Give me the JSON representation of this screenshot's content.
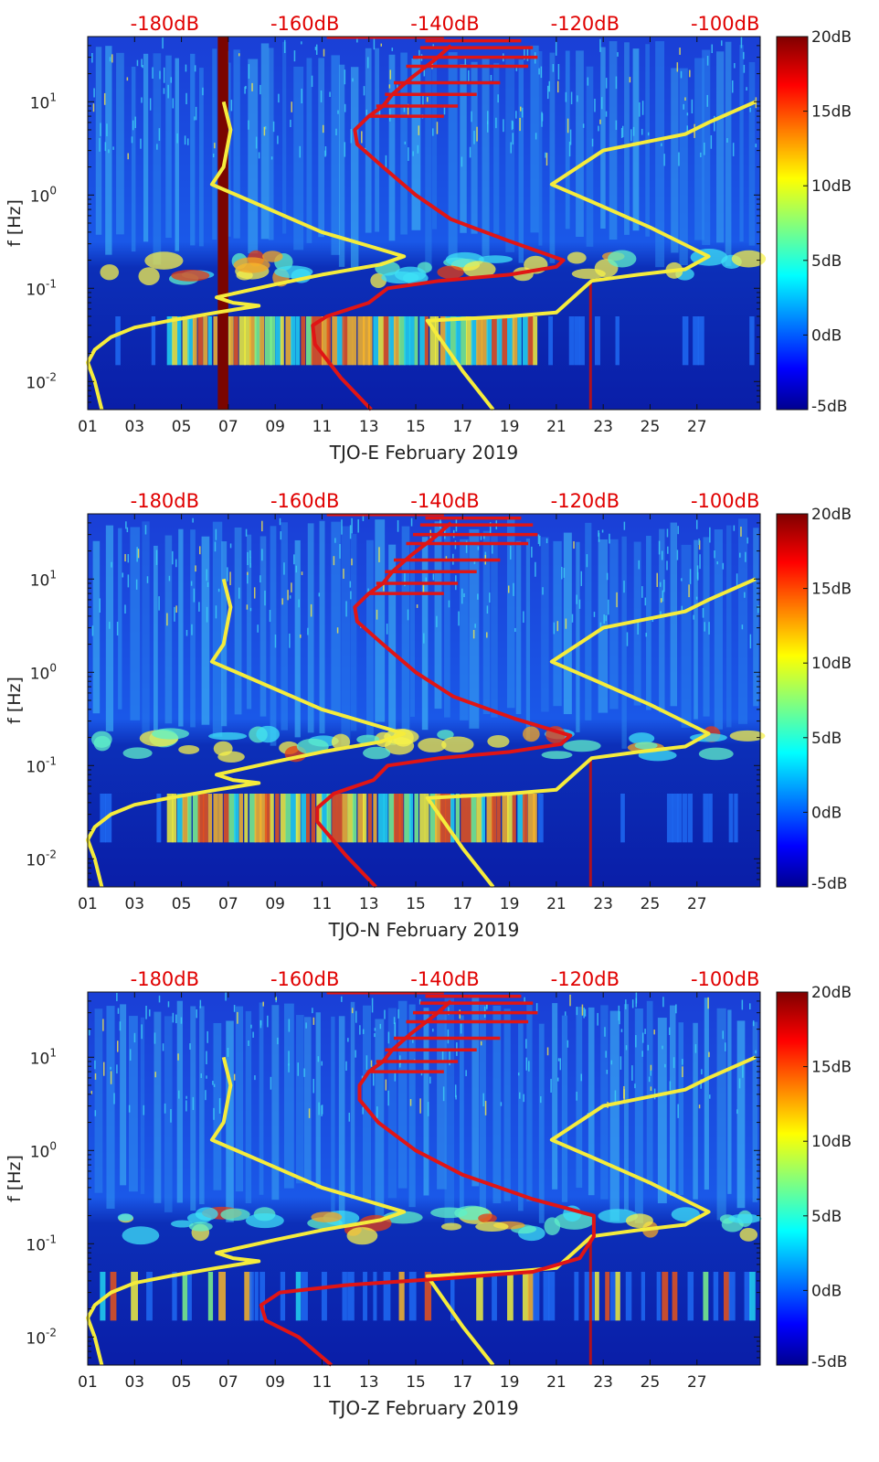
{
  "chart_data": [
    {
      "type": "heatmap",
      "station": "TJO-E",
      "xlabel": "TJO-E February 2019",
      "ylabel": "f [Hz]",
      "x_ticks": [
        "01",
        "03",
        "05",
        "07",
        "09",
        "11",
        "13",
        "15",
        "17",
        "19",
        "21",
        "23",
        "25",
        "27"
      ],
      "y_ticks": [
        {
          "base": "10",
          "exp": "1",
          "value": 10
        },
        {
          "base": "10",
          "exp": "0",
          "value": 1
        },
        {
          "base": "10",
          "exp": "-1",
          "value": 0.1
        },
        {
          "base": "10",
          "exp": "-2",
          "value": 0.01
        }
      ],
      "xlim_days": [
        1,
        29.7
      ],
      "ylim_hz": [
        0.005,
        50
      ],
      "top_axis_labels": [
        "-180dB",
        "-160dB",
        "-140dB",
        "-120dB",
        "-100dB"
      ],
      "top_axis_db": [
        -180,
        -160,
        -140,
        -120,
        -100
      ],
      "top_axis_xlim_db": [
        -191,
        -95
      ],
      "colorbar": {
        "labels": [
          "20dB",
          "15dB",
          "10dB",
          "5dB",
          "0dB",
          "-5dB"
        ],
        "values": [
          20,
          15,
          10,
          5,
          0,
          -5
        ],
        "range": [
          -5,
          20
        ],
        "colormap": "jet"
      },
      "series": [
        {
          "name": "noise-model-low",
          "color": "#f5ec3c",
          "points": [
            [
              1.6,
              0.005
            ],
            [
              1.3,
              0.01
            ],
            [
              1.0,
              0.016
            ],
            [
              1.3,
              0.022
            ],
            [
              2,
              0.03
            ],
            [
              3,
              0.038
            ],
            [
              4.5,
              0.045
            ],
            [
              6.5,
              0.055
            ],
            [
              8.3,
              0.065
            ],
            [
              7.2,
              0.07
            ],
            [
              6.5,
              0.08
            ],
            [
              9,
              0.11
            ],
            [
              11,
              0.14
            ],
            [
              13.5,
              0.18
            ],
            [
              14.5,
              0.22
            ],
            [
              11,
              0.4
            ],
            [
              8,
              0.85
            ],
            [
              6.3,
              1.3
            ],
            [
              6.8,
              2
            ],
            [
              7.1,
              5
            ],
            [
              6.8,
              10
            ]
          ]
        },
        {
          "name": "noise-model-high",
          "color": "#f5ec3c",
          "points": [
            [
              18.3,
              0.005
            ],
            [
              17,
              0.013
            ],
            [
              15.5,
              0.045
            ],
            [
              19,
              0.05
            ],
            [
              21,
              0.055
            ],
            [
              22.5,
              0.12
            ],
            [
              24.5,
              0.14
            ],
            [
              26.5,
              0.16
            ],
            [
              27.5,
              0.22
            ],
            [
              25,
              0.45
            ],
            [
              22.5,
              0.85
            ],
            [
              20.8,
              1.3
            ],
            [
              23,
              3
            ],
            [
              26.5,
              4.5
            ],
            [
              27.5,
              6
            ],
            [
              29.5,
              10
            ]
          ]
        },
        {
          "name": "median-psd",
          "color": "#e01515",
          "points": [
            [
              13.1,
              0.005
            ],
            [
              11.8,
              0.011
            ],
            [
              10.7,
              0.025
            ],
            [
              10.6,
              0.04
            ],
            [
              11.2,
              0.05
            ],
            [
              13,
              0.07
            ],
            [
              13.8,
              0.1
            ],
            [
              16,
              0.12
            ],
            [
              19,
              0.14
            ],
            [
              21,
              0.17
            ],
            [
              21.3,
              0.2
            ],
            [
              19,
              0.32
            ],
            [
              16.5,
              0.55
            ],
            [
              15,
              1.0
            ],
            [
              13.6,
              2.0
            ],
            [
              12.5,
              3.5
            ],
            [
              12.4,
              5
            ],
            [
              13,
              7
            ],
            [
              13.6,
              9
            ],
            [
              14,
              12
            ],
            [
              14.8,
              18
            ],
            [
              15.8,
              28
            ],
            [
              16.5,
              40
            ]
          ]
        }
      ]
    },
    {
      "type": "heatmap",
      "station": "TJO-N",
      "xlabel": "TJO-N February 2019",
      "ylabel": "f [Hz]",
      "x_ticks": [
        "01",
        "03",
        "05",
        "07",
        "09",
        "11",
        "13",
        "15",
        "17",
        "19",
        "21",
        "23",
        "25",
        "27"
      ],
      "y_ticks": [
        {
          "base": "10",
          "exp": "1",
          "value": 10
        },
        {
          "base": "10",
          "exp": "0",
          "value": 1
        },
        {
          "base": "10",
          "exp": "-1",
          "value": 0.1
        },
        {
          "base": "10",
          "exp": "-2",
          "value": 0.01
        }
      ],
      "xlim_days": [
        1,
        29.7
      ],
      "ylim_hz": [
        0.005,
        50
      ],
      "top_axis_labels": [
        "-180dB",
        "-160dB",
        "-140dB",
        "-120dB",
        "-100dB"
      ],
      "top_axis_db": [
        -180,
        -160,
        -140,
        -120,
        -100
      ],
      "top_axis_xlim_db": [
        -191,
        -95
      ],
      "colorbar": {
        "labels": [
          "20dB",
          "15dB",
          "10dB",
          "5dB",
          "0dB",
          "-5dB"
        ],
        "values": [
          20,
          15,
          10,
          5,
          0,
          -5
        ],
        "range": [
          -5,
          20
        ],
        "colormap": "jet"
      },
      "series": [
        {
          "name": "noise-model-low",
          "color": "#f5ec3c",
          "points": [
            [
              1.6,
              0.005
            ],
            [
              1.3,
              0.01
            ],
            [
              1.0,
              0.016
            ],
            [
              1.3,
              0.022
            ],
            [
              2,
              0.03
            ],
            [
              3,
              0.038
            ],
            [
              4.5,
              0.045
            ],
            [
              6.5,
              0.055
            ],
            [
              8.3,
              0.065
            ],
            [
              7.2,
              0.07
            ],
            [
              6.5,
              0.08
            ],
            [
              9,
              0.11
            ],
            [
              11,
              0.14
            ],
            [
              13.5,
              0.18
            ],
            [
              14.5,
              0.22
            ],
            [
              11,
              0.4
            ],
            [
              8,
              0.85
            ],
            [
              6.3,
              1.3
            ],
            [
              6.8,
              2
            ],
            [
              7.1,
              5
            ],
            [
              6.8,
              10
            ]
          ]
        },
        {
          "name": "noise-model-high",
          "color": "#f5ec3c",
          "points": [
            [
              18.3,
              0.005
            ],
            [
              17,
              0.013
            ],
            [
              15.5,
              0.045
            ],
            [
              19,
              0.05
            ],
            [
              21,
              0.055
            ],
            [
              22.5,
              0.12
            ],
            [
              24.5,
              0.14
            ],
            [
              26.5,
              0.16
            ],
            [
              27.5,
              0.22
            ],
            [
              25,
              0.45
            ],
            [
              22.5,
              0.85
            ],
            [
              20.8,
              1.3
            ],
            [
              23,
              3
            ],
            [
              26.5,
              4.5
            ],
            [
              27.5,
              6
            ],
            [
              29.5,
              10
            ]
          ]
        },
        {
          "name": "median-psd",
          "color": "#e01515",
          "points": [
            [
              13.3,
              0.005
            ],
            [
              12,
              0.011
            ],
            [
              10.8,
              0.025
            ],
            [
              10.8,
              0.035
            ],
            [
              11.5,
              0.05
            ],
            [
              13.2,
              0.07
            ],
            [
              13.8,
              0.1
            ],
            [
              16,
              0.12
            ],
            [
              19,
              0.14
            ],
            [
              21.2,
              0.17
            ],
            [
              21.6,
              0.21
            ],
            [
              19.2,
              0.32
            ],
            [
              16.6,
              0.55
            ],
            [
              15,
              1.0
            ],
            [
              13.6,
              2.0
            ],
            [
              12.5,
              3.5
            ],
            [
              12.4,
              5
            ],
            [
              13,
              7
            ],
            [
              13.6,
              9
            ],
            [
              14,
              12
            ],
            [
              14.8,
              18
            ],
            [
              15.8,
              28
            ],
            [
              16.5,
              40
            ]
          ]
        }
      ]
    },
    {
      "type": "heatmap",
      "station": "TJO-Z",
      "xlabel": "TJO-Z February 2019",
      "ylabel": "f [Hz]",
      "x_ticks": [
        "01",
        "03",
        "05",
        "07",
        "09",
        "11",
        "13",
        "15",
        "17",
        "19",
        "21",
        "23",
        "25",
        "27"
      ],
      "y_ticks": [
        {
          "base": "10",
          "exp": "1",
          "value": 10
        },
        {
          "base": "10",
          "exp": "0",
          "value": 1
        },
        {
          "base": "10",
          "exp": "-1",
          "value": 0.1
        },
        {
          "base": "10",
          "exp": "-2",
          "value": 0.01
        }
      ],
      "xlim_days": [
        1,
        29.7
      ],
      "ylim_hz": [
        0.005,
        50
      ],
      "top_axis_labels": [
        "-180dB",
        "-160dB",
        "-140dB",
        "-120dB",
        "-100dB"
      ],
      "top_axis_db": [
        -180,
        -160,
        -140,
        -120,
        -100
      ],
      "top_axis_xlim_db": [
        -191,
        -95
      ],
      "colorbar": {
        "labels": [
          "20dB",
          "15dB",
          "10dB",
          "5dB",
          "0dB",
          "-5dB"
        ],
        "values": [
          20,
          15,
          10,
          5,
          0,
          -5
        ],
        "range": [
          -5,
          20
        ],
        "colormap": "jet"
      },
      "series": [
        {
          "name": "noise-model-low",
          "color": "#f5ec3c",
          "points": [
            [
              1.6,
              0.005
            ],
            [
              1.3,
              0.01
            ],
            [
              1.0,
              0.016
            ],
            [
              1.3,
              0.022
            ],
            [
              2,
              0.03
            ],
            [
              3,
              0.038
            ],
            [
              4.5,
              0.045
            ],
            [
              6.5,
              0.055
            ],
            [
              8.3,
              0.065
            ],
            [
              7.2,
              0.07
            ],
            [
              6.5,
              0.08
            ],
            [
              9,
              0.11
            ],
            [
              11,
              0.14
            ],
            [
              13.5,
              0.18
            ],
            [
              14.5,
              0.22
            ],
            [
              11,
              0.4
            ],
            [
              8,
              0.85
            ],
            [
              6.3,
              1.3
            ],
            [
              6.8,
              2
            ],
            [
              7.1,
              5
            ],
            [
              6.8,
              10
            ]
          ]
        },
        {
          "name": "noise-model-high",
          "color": "#f5ec3c",
          "points": [
            [
              18.3,
              0.005
            ],
            [
              17,
              0.013
            ],
            [
              15.5,
              0.045
            ],
            [
              19,
              0.05
            ],
            [
              21,
              0.055
            ],
            [
              22.5,
              0.12
            ],
            [
              24.5,
              0.14
            ],
            [
              26.5,
              0.16
            ],
            [
              27.5,
              0.22
            ],
            [
              25,
              0.45
            ],
            [
              22.5,
              0.85
            ],
            [
              20.8,
              1.3
            ],
            [
              23,
              3
            ],
            [
              26.5,
              4.5
            ],
            [
              27.5,
              6
            ],
            [
              29.5,
              10
            ]
          ]
        },
        {
          "name": "median-psd",
          "color": "#e01515",
          "points": [
            [
              11.4,
              0.005
            ],
            [
              10,
              0.01
            ],
            [
              8.6,
              0.015
            ],
            [
              8.4,
              0.022
            ],
            [
              9.2,
              0.03
            ],
            [
              12,
              0.036
            ],
            [
              16,
              0.042
            ],
            [
              20,
              0.05
            ],
            [
              22,
              0.07
            ],
            [
              22.6,
              0.12
            ],
            [
              22.6,
              0.2
            ],
            [
              20,
              0.3
            ],
            [
              17,
              0.55
            ],
            [
              15,
              1.0
            ],
            [
              13.4,
              2.0
            ],
            [
              12.6,
              3.5
            ],
            [
              12.6,
              5
            ],
            [
              13,
              7
            ],
            [
              13.6,
              9
            ],
            [
              14,
              12
            ],
            [
              14.8,
              18
            ],
            [
              15.8,
              28
            ],
            [
              16.5,
              40
            ]
          ]
        }
      ]
    }
  ]
}
